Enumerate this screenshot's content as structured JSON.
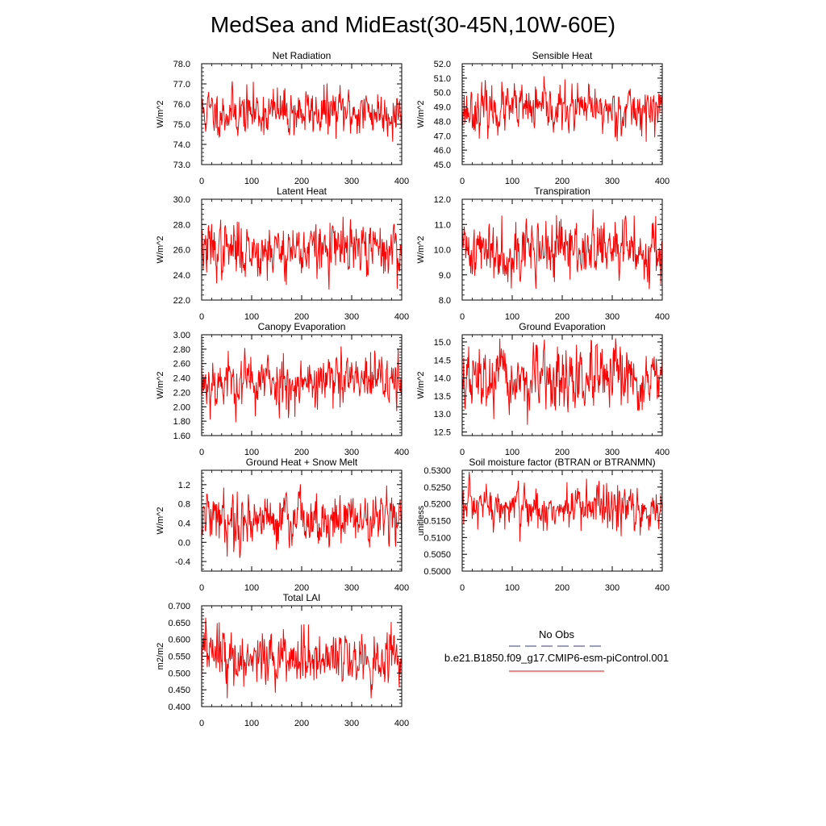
{
  "figure_title": "MedSea and MidEast(30-45N,10W-60E)",
  "legend": {
    "obs_label": "No Obs",
    "case_label": "b.e21.B1850.f09_g17.CMIP6-esm-piControl.001",
    "obs_color": "#3a3a7a",
    "case_color": "#ff0000"
  },
  "line_color": "#ff0000",
  "chart_data": [
    {
      "id": "net-radiation",
      "type": "line",
      "title": "Net Radiation",
      "ylabel": "W/m^2",
      "xlim": [
        0,
        400
      ],
      "xticks": [
        0,
        100,
        200,
        300,
        400
      ],
      "ylim": [
        73.0,
        78.0
      ],
      "yticks": [
        "78.0",
        "77.0",
        "76.0",
        "75.0",
        "74.0",
        "73.0"
      ],
      "series": [
        {
          "name": "b.e21.B1850.f09_g17.CMIP6-esm-piControl.001",
          "n": 400,
          "mean": 75.6,
          "std": 0.6,
          "min": 73.4,
          "max": 77.4,
          "seed": 11
        }
      ]
    },
    {
      "id": "sensible-heat",
      "type": "line",
      "title": "Sensible Heat",
      "ylabel": "W/m^2",
      "xlim": [
        0,
        400
      ],
      "xticks": [
        0,
        100,
        200,
        300,
        400
      ],
      "ylim": [
        45.0,
        52.0
      ],
      "yticks": [
        "52.0",
        "51.0",
        "50.0",
        "49.0",
        "48.0",
        "47.0",
        "46.0",
        "45.0"
      ],
      "series": [
        {
          "name": "b.e21.B1850.f09_g17.CMIP6-esm-piControl.001",
          "n": 400,
          "mean": 48.8,
          "std": 0.8,
          "min": 45.9,
          "max": 51.4,
          "seed": 23
        }
      ]
    },
    {
      "id": "latent-heat",
      "type": "line",
      "title": "Latent Heat",
      "ylabel": "W/m^2",
      "xlim": [
        0,
        400
      ],
      "xticks": [
        0,
        100,
        200,
        300,
        400
      ],
      "ylim": [
        22.0,
        30.0
      ],
      "yticks": [
        "30.0",
        "28.0",
        "26.0",
        "24.0",
        "22.0"
      ],
      "series": [
        {
          "name": "b.e21.B1850.f09_g17.CMIP6-esm-piControl.001",
          "n": 400,
          "mean": 26.0,
          "std": 1.1,
          "min": 22.6,
          "max": 29.3,
          "seed": 37
        }
      ]
    },
    {
      "id": "transpiration",
      "type": "line",
      "title": "Transpiration",
      "ylabel": "W/m^2",
      "xlim": [
        0,
        400
      ],
      "xticks": [
        0,
        100,
        200,
        300,
        400
      ],
      "ylim": [
        8.0,
        12.0
      ],
      "yticks": [
        "12.0",
        "11.0",
        "10.0",
        "9.0",
        "8.0"
      ],
      "series": [
        {
          "name": "b.e21.B1850.f09_g17.CMIP6-esm-piControl.001",
          "n": 400,
          "mean": 10.0,
          "std": 0.6,
          "min": 8.1,
          "max": 11.9,
          "seed": 41
        }
      ]
    },
    {
      "id": "canopy-evaporation",
      "type": "line",
      "title": "Canopy Evaporation",
      "ylabel": "W/m^2",
      "xlim": [
        0,
        400
      ],
      "xticks": [
        0,
        100,
        200,
        300,
        400
      ],
      "ylim": [
        1.6,
        3.0
      ],
      "yticks": [
        "3.00",
        "2.80",
        "2.60",
        "2.40",
        "2.20",
        "2.00",
        "1.80",
        "1.60"
      ],
      "series": [
        {
          "name": "b.e21.B1850.f09_g17.CMIP6-esm-piControl.001",
          "n": 400,
          "mean": 2.35,
          "std": 0.2,
          "min": 1.65,
          "max": 2.88,
          "seed": 53
        }
      ]
    },
    {
      "id": "ground-evaporation",
      "type": "line",
      "title": "Ground Evaporation",
      "ylabel": "W/m^2",
      "xlim": [
        0,
        400
      ],
      "xticks": [
        0,
        100,
        200,
        300,
        400
      ],
      "ylim": [
        12.4,
        15.2
      ],
      "yticks": [
        "15.0",
        "14.5",
        "14.0",
        "13.5",
        "13.0",
        "12.5"
      ],
      "series": [
        {
          "name": "b.e21.B1850.f09_g17.CMIP6-esm-piControl.001",
          "n": 400,
          "mean": 13.9,
          "std": 0.45,
          "min": 12.5,
          "max": 15.1,
          "seed": 67
        }
      ]
    },
    {
      "id": "ground-heat-snow-melt",
      "type": "line",
      "title": "Ground Heat + Snow Melt",
      "ylabel": "W/m^2",
      "xlim": [
        0,
        400
      ],
      "xticks": [
        0,
        100,
        200,
        300,
        400
      ],
      "ylim": [
        -0.6,
        1.5
      ],
      "yticks": [
        "1.2",
        "0.8",
        "0.4",
        "0.0",
        "-0.4"
      ],
      "series": [
        {
          "name": "b.e21.B1850.f09_g17.CMIP6-esm-piControl.001",
          "n": 400,
          "mean": 0.5,
          "std": 0.28,
          "min": -0.35,
          "max": 1.4,
          "seed": 79
        }
      ]
    },
    {
      "id": "soil-moisture-factor",
      "type": "line",
      "title": "Soil moisture factor (BTRAN or BTRANMN)",
      "ylabel": "unitless",
      "xlim": [
        0,
        400
      ],
      "xticks": [
        0,
        100,
        200,
        300,
        400
      ],
      "ylim": [
        0.5,
        0.53
      ],
      "yticks": [
        "0.5300",
        "0.5250",
        "0.5200",
        "0.5150",
        "0.5100",
        "0.5050",
        "0.5000"
      ],
      "series": [
        {
          "name": "b.e21.B1850.f09_g17.CMIP6-esm-piControl.001",
          "n": 400,
          "mean": 0.5185,
          "std": 0.0035,
          "min": 0.5007,
          "max": 0.5295,
          "seed": 97
        }
      ]
    },
    {
      "id": "total-lai",
      "type": "line",
      "title": "Total LAI",
      "ylabel": "m2/m2",
      "xlim": [
        0,
        400
      ],
      "xticks": [
        0,
        100,
        200,
        300,
        400
      ],
      "ylim": [
        0.4,
        0.7
      ],
      "yticks": [
        "0.700",
        "0.650",
        "0.600",
        "0.550",
        "0.500",
        "0.450",
        "0.400"
      ],
      "series": [
        {
          "name": "b.e21.B1850.f09_g17.CMIP6-esm-piControl.001",
          "n": 400,
          "mean": 0.545,
          "std": 0.042,
          "min": 0.425,
          "max": 0.695,
          "seed": 113
        }
      ]
    }
  ]
}
